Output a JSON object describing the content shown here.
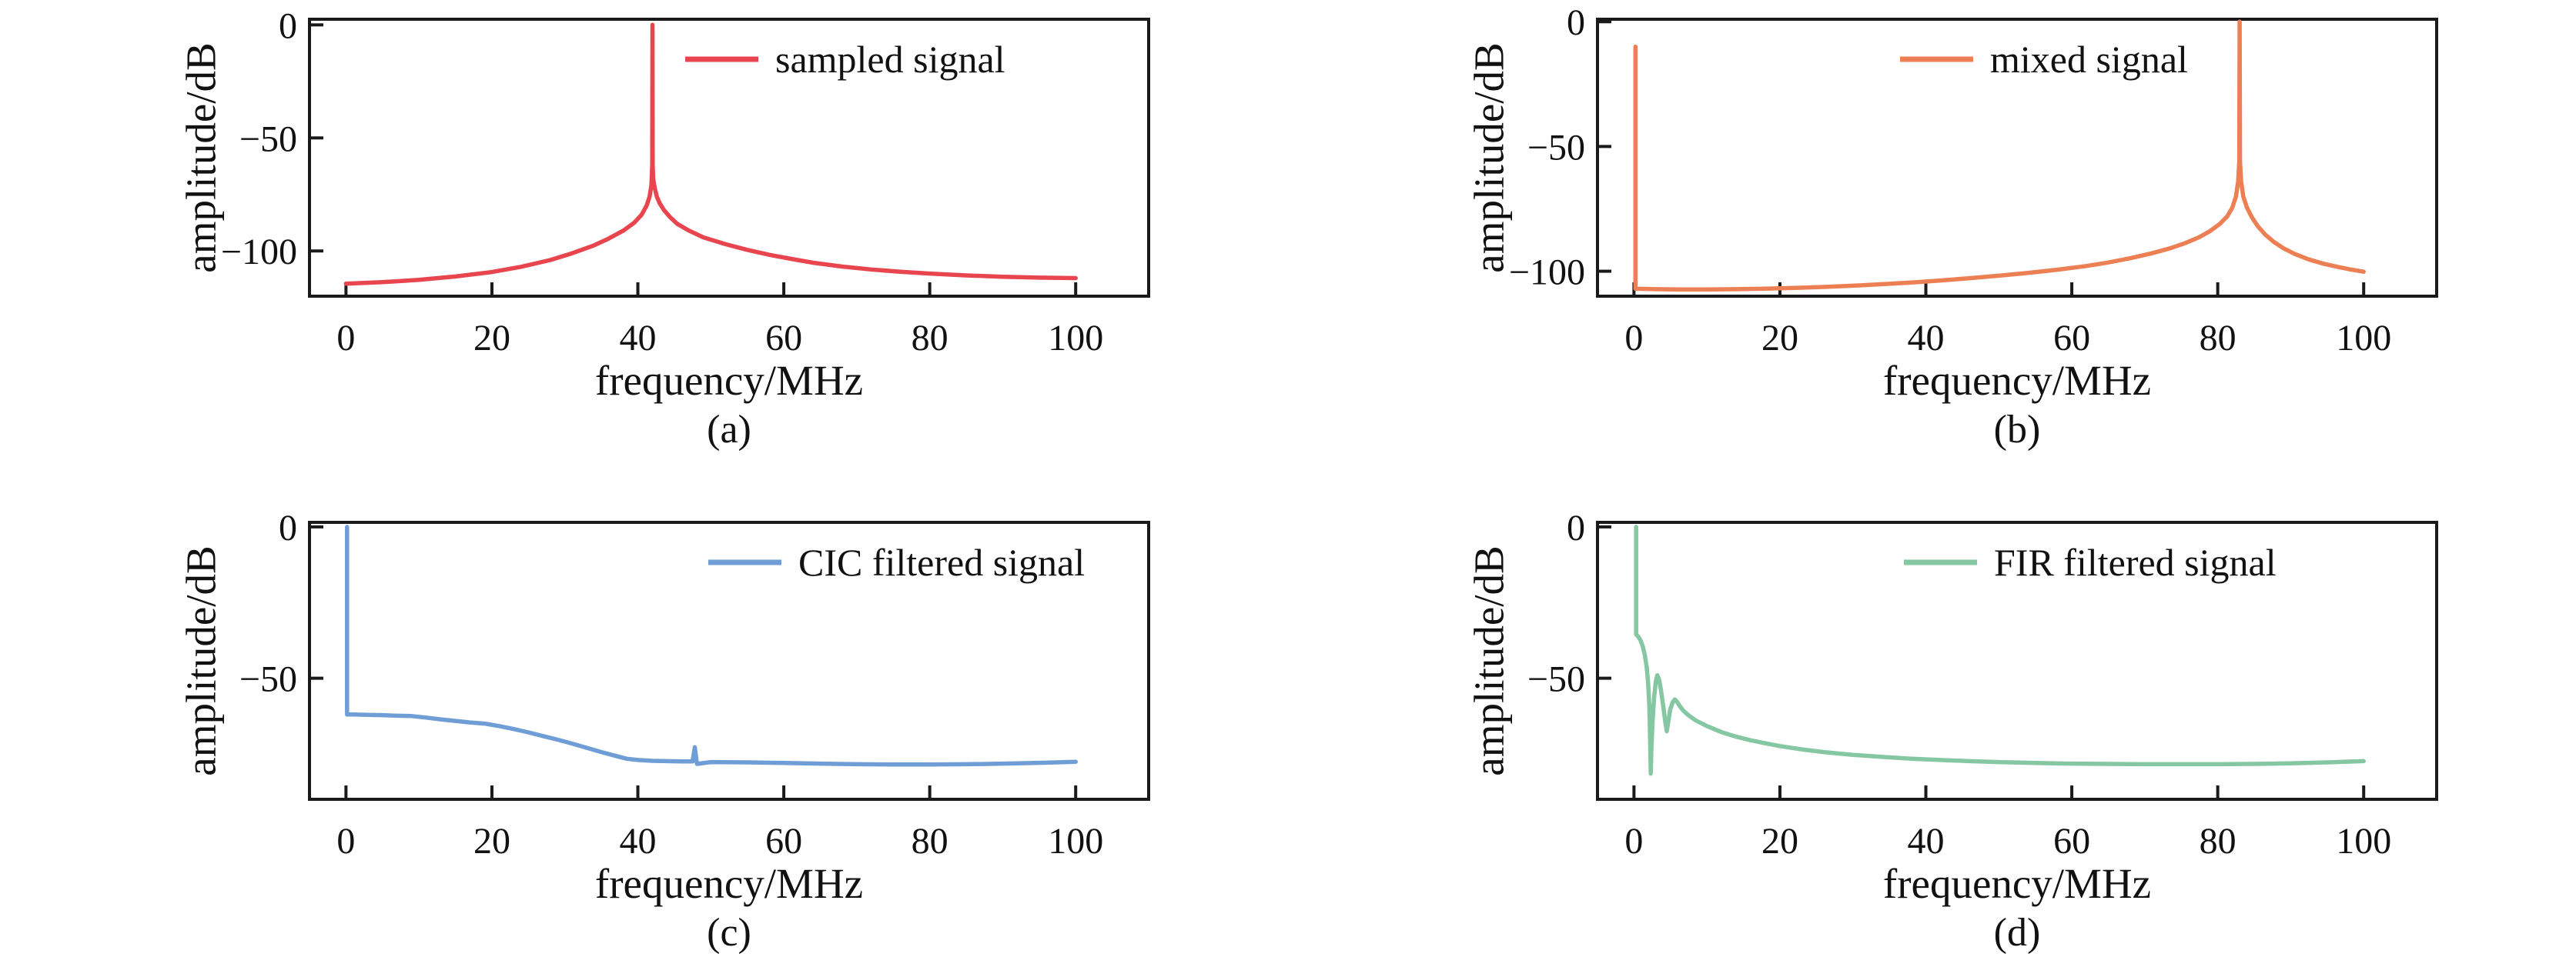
{
  "page": {
    "background": "#ffffff",
    "text_color": "#111111",
    "spine_color": "#1a1a1a"
  },
  "chart_data": [
    {
      "type": "line",
      "caption": "(a)",
      "xlabel": "frequency/MHz",
      "ylabel": "amplitude/dB",
      "xlim": [
        -5,
        110
      ],
      "ylim": [
        -120,
        2.5
      ],
      "xticks": [
        0,
        20,
        40,
        60,
        80,
        100
      ],
      "xtick_labels": [
        "0",
        "20",
        "40",
        "60",
        "80",
        "100"
      ],
      "yticks": [
        0,
        -50,
        -100
      ],
      "ytick_labels": [
        "0",
        "−50",
        "−100"
      ],
      "grid": false,
      "legend_position": "inside upper right, no frame",
      "series": [
        {
          "name": "sampled signal",
          "color": "#e8454e",
          "peak_MHz": 42,
          "peak_dB": 0,
          "points": [
            [
              0,
              -114.5
            ],
            [
              5,
              -113.8
            ],
            [
              10,
              -112.8
            ],
            [
              15,
              -111.3
            ],
            [
              20,
              -109.3
            ],
            [
              24,
              -107
            ],
            [
              28,
              -104
            ],
            [
              31,
              -101
            ],
            [
              34,
              -97.5
            ],
            [
              36,
              -94.5
            ],
            [
              38,
              -91
            ],
            [
              39.5,
              -87.5
            ],
            [
              40.5,
              -84
            ],
            [
              41.2,
              -80
            ],
            [
              41.6,
              -76
            ],
            [
              41.85,
              -71
            ],
            [
              41.9,
              -68
            ],
            [
              41.97,
              -62
            ],
            [
              42,
              0
            ],
            [
              42.03,
              -62
            ],
            [
              42.1,
              -68
            ],
            [
              42.3,
              -72
            ],
            [
              42.6,
              -76
            ],
            [
              43,
              -79
            ],
            [
              43.6,
              -82
            ],
            [
              44.4,
              -85
            ],
            [
              45.4,
              -88
            ],
            [
              47,
              -91
            ],
            [
              49,
              -94
            ],
            [
              52,
              -97
            ],
            [
              55,
              -99.5
            ],
            [
              58,
              -101.7
            ],
            [
              61,
              -103.5
            ],
            [
              64,
              -105.2
            ],
            [
              68,
              -106.9
            ],
            [
              72,
              -108.2
            ],
            [
              76,
              -109.2
            ],
            [
              80,
              -110
            ],
            [
              85,
              -110.8
            ],
            [
              90,
              -111.4
            ],
            [
              95,
              -111.8
            ],
            [
              100,
              -112
            ]
          ]
        }
      ]
    },
    {
      "type": "line",
      "caption": "(b)",
      "xlabel": "frequency/MHz",
      "ylabel": "amplitude/dB",
      "xlim": [
        -5,
        110
      ],
      "ylim": [
        -110,
        1
      ],
      "xticks": [
        0,
        20,
        40,
        60,
        80,
        100
      ],
      "xtick_labels": [
        "0",
        "20",
        "40",
        "60",
        "80",
        "100"
      ],
      "yticks": [
        0,
        -50,
        -100
      ],
      "ytick_labels": [
        "0",
        "−50",
        "−100"
      ],
      "grid": false,
      "legend_position": "inside upper right, no frame",
      "series": [
        {
          "name": "mixed signal",
          "color": "#ec8054",
          "peak_MHz": 83,
          "peak_dB": 0,
          "dc_spike_dB": -10,
          "points": [
            [
              0.2,
              -10
            ],
            [
              0.2,
              -107
            ],
            [
              3,
              -107.2
            ],
            [
              6,
              -107.3
            ],
            [
              10,
              -107.3
            ],
            [
              14,
              -107.2
            ],
            [
              18,
              -107
            ],
            [
              22,
              -106.7
            ],
            [
              26,
              -106.3
            ],
            [
              30,
              -105.8
            ],
            [
              34,
              -105.2
            ],
            [
              38,
              -104.5
            ],
            [
              42,
              -103.7
            ],
            [
              46,
              -102.8
            ],
            [
              50,
              -101.8
            ],
            [
              54,
              -100.7
            ],
            [
              58,
              -99.4
            ],
            [
              62,
              -97.9
            ],
            [
              65,
              -96.5
            ],
            [
              68,
              -94.8
            ],
            [
              71,
              -92.8
            ],
            [
              73.5,
              -90.8
            ],
            [
              75.5,
              -88.8
            ],
            [
              77.5,
              -86.3
            ],
            [
              79,
              -83.8
            ],
            [
              80.3,
              -81
            ],
            [
              81.3,
              -78
            ],
            [
              82,
              -74.5
            ],
            [
              82.5,
              -70
            ],
            [
              82.8,
              -64
            ],
            [
              82.95,
              -56
            ],
            [
              83,
              0
            ],
            [
              83.05,
              -56
            ],
            [
              83.2,
              -64
            ],
            [
              83.5,
              -70
            ],
            [
              84,
              -74.5
            ],
            [
              84.7,
              -78.5
            ],
            [
              85.5,
              -82
            ],
            [
              86.5,
              -85.3
            ],
            [
              87.7,
              -88.3
            ],
            [
              89,
              -90.8
            ],
            [
              90.5,
              -93
            ],
            [
              92.5,
              -95.3
            ],
            [
              94.5,
              -97
            ],
            [
              96.5,
              -98.3
            ],
            [
              98.2,
              -99.3
            ],
            [
              100,
              -100.2
            ]
          ]
        }
      ]
    },
    {
      "type": "line",
      "caption": "(c)",
      "xlabel": "frequency/MHz",
      "ylabel": "amplitude/dB",
      "xlim": [
        -5,
        110
      ],
      "ylim": [
        -90,
        1.5
      ],
      "xticks": [
        0,
        20,
        40,
        60,
        80,
        100
      ],
      "xtick_labels": [
        "0",
        "20",
        "40",
        "60",
        "80",
        "100"
      ],
      "yticks": [
        0,
        -50
      ],
      "ytick_labels": [
        "0",
        "−50"
      ],
      "grid": false,
      "legend_position": "inside upper right, no frame",
      "series": [
        {
          "name": "CIC filtered signal",
          "color": "#6f9ed6",
          "dc_spike_dB": 0,
          "passband_plateau_dB": -62,
          "stopband_floor_dB": -78,
          "small_spur_MHz": 48,
          "points": [
            [
              0.15,
              0
            ],
            [
              0.15,
              -62
            ],
            [
              1,
              -62
            ],
            [
              3,
              -62.1
            ],
            [
              5,
              -62.2
            ],
            [
              7,
              -62.4
            ],
            [
              9,
              -62.5
            ],
            [
              11,
              -63
            ],
            [
              13,
              -63.6
            ],
            [
              15,
              -64.1
            ],
            [
              17,
              -64.6
            ],
            [
              19,
              -65
            ],
            [
              21,
              -65.8
            ],
            [
              23,
              -66.8
            ],
            [
              25,
              -67.9
            ],
            [
              27,
              -69.1
            ],
            [
              29,
              -70.3
            ],
            [
              31,
              -71.6
            ],
            [
              33,
              -73
            ],
            [
              35,
              -74.4
            ],
            [
              37,
              -75.7
            ],
            [
              38.5,
              -76.6
            ],
            [
              40,
              -77
            ],
            [
              42,
              -77.3
            ],
            [
              44,
              -77.4
            ],
            [
              46,
              -77.5
            ],
            [
              47.5,
              -77.5
            ],
            [
              47.8,
              -72.8
            ],
            [
              48.1,
              -78.3
            ],
            [
              50,
              -77.7
            ],
            [
              55,
              -77.8
            ],
            [
              60,
              -78
            ],
            [
              65,
              -78.2
            ],
            [
              70,
              -78.4
            ],
            [
              75,
              -78.5
            ],
            [
              80,
              -78.5
            ],
            [
              85,
              -78.4
            ],
            [
              88,
              -78.3
            ],
            [
              92,
              -78.1
            ],
            [
              96,
              -77.9
            ],
            [
              100,
              -77.6
            ]
          ]
        }
      ]
    },
    {
      "type": "line",
      "caption": "(d)",
      "xlabel": "frequency/MHz",
      "ylabel": "amplitude/dB",
      "xlim": [
        -5,
        110
      ],
      "ylim": [
        -90,
        1.5
      ],
      "xticks": [
        0,
        20,
        40,
        60,
        80,
        100
      ],
      "xtick_labels": [
        "0",
        "20",
        "40",
        "60",
        "80",
        "100"
      ],
      "yticks": [
        0,
        -50
      ],
      "ytick_labels": [
        "0",
        "−50"
      ],
      "grid": false,
      "legend_position": "inside upper right, no frame",
      "series": [
        {
          "name": "FIR filtered signal",
          "color": "#85c7a2",
          "dc_spike_dB": 0,
          "notch_MHz": 2.3,
          "notch_dB": -81.5,
          "stopband_floor_dB": -78,
          "points": [
            [
              0.3,
              0
            ],
            [
              0.3,
              -35.5
            ],
            [
              0.6,
              -36.3
            ],
            [
              0.9,
              -37.5
            ],
            [
              1.2,
              -39.5
            ],
            [
              1.5,
              -42.5
            ],
            [
              1.75,
              -46.5
            ],
            [
              1.95,
              -52
            ],
            [
              2.1,
              -59
            ],
            [
              2.2,
              -68
            ],
            [
              2.3,
              -81.5
            ],
            [
              2.4,
              -73
            ],
            [
              2.55,
              -64
            ],
            [
              2.75,
              -56.5
            ],
            [
              3,
              -51
            ],
            [
              3.2,
              -49
            ],
            [
              3.45,
              -50.5
            ],
            [
              3.7,
              -54
            ],
            [
              4,
              -59
            ],
            [
              4.3,
              -64.5
            ],
            [
              4.5,
              -67.5
            ],
            [
              4.7,
              -64.5
            ],
            [
              4.95,
              -60.5
            ],
            [
              5.3,
              -58
            ],
            [
              5.6,
              -57
            ],
            [
              5.9,
              -57.8
            ],
            [
              6.3,
              -59.3
            ],
            [
              6.8,
              -60.8
            ],
            [
              7.5,
              -62.3
            ],
            [
              8.5,
              -64
            ],
            [
              10,
              -65.8
            ],
            [
              12,
              -67.8
            ],
            [
              14,
              -69.3
            ],
            [
              16,
              -70.5
            ],
            [
              18,
              -71.5
            ],
            [
              20,
              -72.4
            ],
            [
              23,
              -73.5
            ],
            [
              26,
              -74.4
            ],
            [
              30,
              -75.3
            ],
            [
              34,
              -76
            ],
            [
              38,
              -76.6
            ],
            [
              42,
              -77
            ],
            [
              46,
              -77.4
            ],
            [
              50,
              -77.7
            ],
            [
              55,
              -78
            ],
            [
              60,
              -78.2
            ],
            [
              65,
              -78.3
            ],
            [
              70,
              -78.4
            ],
            [
              75,
              -78.4
            ],
            [
              80,
              -78.4
            ],
            [
              85,
              -78.3
            ],
            [
              90,
              -78.1
            ],
            [
              95,
              -77.8
            ],
            [
              100,
              -77.4
            ]
          ]
        }
      ]
    }
  ]
}
